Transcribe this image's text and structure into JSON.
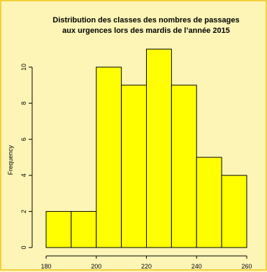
{
  "chart_data": {
    "type": "bar",
    "title_lines": [
      "Distribution des classes des nombres de passages",
      "aux urgences lors des mardis de l’année 2015"
    ],
    "xlabel": "",
    "ylabel": "Frequency",
    "bins": [
      {
        "from": 180,
        "to": 190,
        "count": 2
      },
      {
        "from": 190,
        "to": 200,
        "count": 2
      },
      {
        "from": 200,
        "to": 210,
        "count": 10
      },
      {
        "from": 210,
        "to": 220,
        "count": 9
      },
      {
        "from": 220,
        "to": 230,
        "count": 11
      },
      {
        "from": 230,
        "to": 240,
        "count": 9
      },
      {
        "from": 240,
        "to": 250,
        "count": 5
      },
      {
        "from": 250,
        "to": 260,
        "count": 4
      }
    ],
    "xticks": [
      180,
      200,
      220,
      240,
      260
    ],
    "yticks": [
      0,
      2,
      4,
      6,
      8,
      10
    ],
    "xlim": [
      180,
      260
    ],
    "ylim": [
      0,
      11
    ],
    "bar_color": "#ffff00",
    "bar_outline": "#000000",
    "background_color": "#fdf5b6",
    "border_color": "#f2cf3c",
    "grid": false
  }
}
